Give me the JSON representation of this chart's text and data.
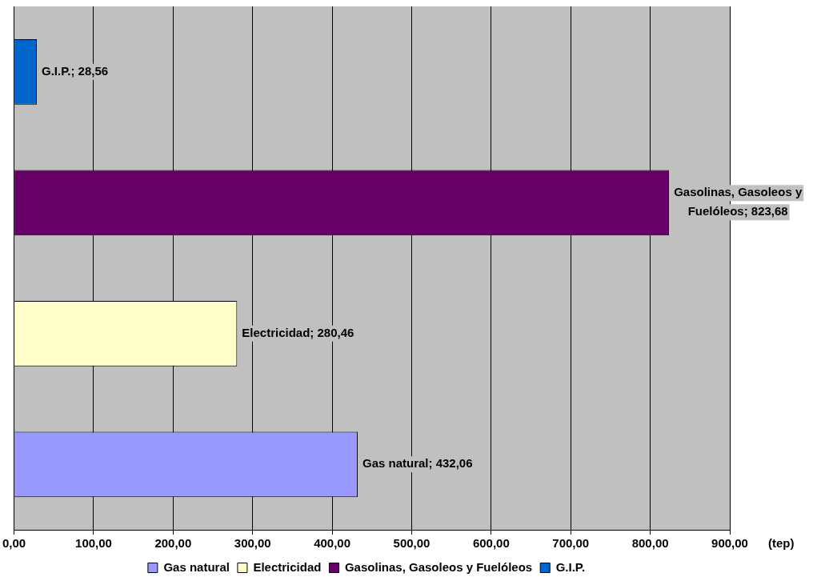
{
  "chart_data": {
    "type": "bar",
    "orientation": "horizontal",
    "categories": [
      null,
      null,
      null,
      null
    ],
    "series": [
      {
        "name": "Gas natural",
        "color": "#9999ff",
        "values": [
          null,
          null,
          null,
          432.06
        ],
        "value_labels": [
          null,
          null,
          null,
          "Gas natural; 432,06"
        ]
      },
      {
        "name": "Electricidad",
        "color": "#ffffcc",
        "values": [
          null,
          null,
          280.46,
          null
        ],
        "value_labels": [
          null,
          null,
          "Electricidad; 280,46",
          null
        ]
      },
      {
        "name": "Gasolinas, Gasoleos y Fuelóleos",
        "color": "#660066",
        "values": [
          null,
          823.68,
          null,
          null
        ],
        "value_labels": [
          null,
          "Gasolinas, Gasoleos y Fuelóleos; 823,68",
          null,
          null
        ]
      },
      {
        "name": "G.I.P.",
        "color": "#0066cc",
        "values": [
          28.56,
          null,
          null,
          null
        ],
        "value_labels": [
          "G.I.P.; 28,56",
          null,
          null,
          null
        ]
      }
    ],
    "xlabel": "(tep)",
    "xlim": [
      0,
      900
    ],
    "xticks": [
      {
        "value": 0,
        "label": "0,00"
      },
      {
        "value": 100,
        "label": "100,00"
      },
      {
        "value": 200,
        "label": "200,00"
      },
      {
        "value": 300,
        "label": "300,00"
      },
      {
        "value": 400,
        "label": "400,00"
      },
      {
        "value": 500,
        "label": "500,00"
      },
      {
        "value": 600,
        "label": "600,00"
      },
      {
        "value": 700,
        "label": "700,00"
      },
      {
        "value": 800,
        "label": "800,00"
      },
      {
        "value": 900,
        "label": "900,00"
      }
    ],
    "grid": "x",
    "legend": "bottom",
    "tick_labels": "x"
  }
}
